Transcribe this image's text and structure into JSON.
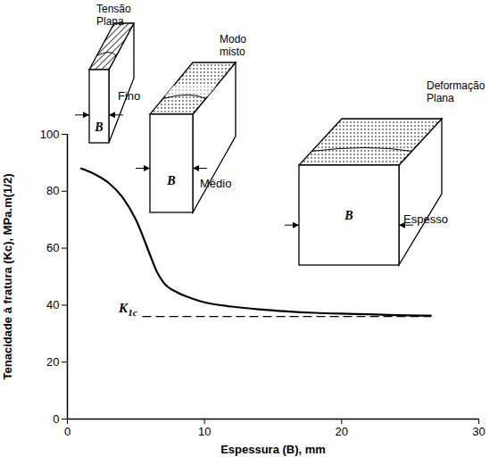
{
  "chart_data": {
    "type": "line",
    "x_label": "Espessura (B), mm",
    "y_label": "Tenacidade à fratura (Kc), MPa.m(1/2)",
    "x": [
      1,
      2,
      3,
      4,
      5,
      6,
      6.5,
      7,
      8,
      9,
      10,
      12,
      14,
      16,
      18,
      20,
      22,
      24,
      26.5
    ],
    "values": [
      88,
      86,
      83,
      78,
      70,
      58,
      52,
      48,
      44.5,
      42.5,
      41,
      39.5,
      38.5,
      37.8,
      37.3,
      37,
      36.8,
      36.5,
      36.3
    ],
    "color": "#000000",
    "xlim": [
      0,
      30
    ],
    "xticks": [
      0,
      10,
      20,
      30
    ],
    "ylim": [
      0,
      100
    ],
    "yticks": [
      0,
      20,
      40,
      60,
      80,
      100
    ],
    "annotations": {
      "k1c": {
        "label": "K1c",
        "value": 36,
        "x": [
          5.5,
          26.5
        ],
        "line_style": "dashed"
      },
      "specimens": [
        {
          "label": "Tensão Plana",
          "size": "Fino",
          "dimension": "B"
        },
        {
          "label": "Modo misto",
          "size": "Médio",
          "dimension": "B"
        },
        {
          "label": "Deformação Plana",
          "size": "Espesso",
          "dimension": "B"
        }
      ]
    }
  }
}
